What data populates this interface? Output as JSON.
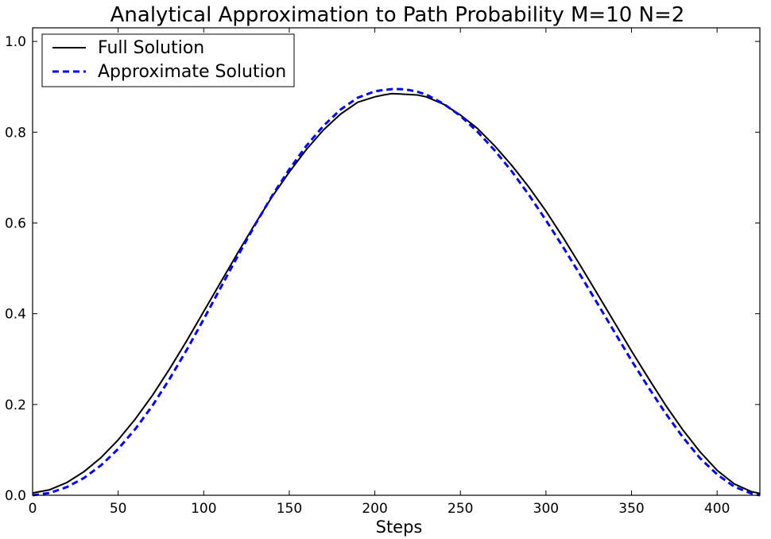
{
  "chart_data": {
    "type": "line",
    "title": "Analytical Approximation to Path Probability   M=10 N=2",
    "xlabel": "Steps",
    "ylabel": "",
    "xlim": [
      0,
      425
    ],
    "ylim": [
      0,
      1.03
    ],
    "xticks": [
      0,
      50,
      100,
      150,
      200,
      250,
      300,
      350,
      400
    ],
    "xtick_labels": [
      "0",
      "50",
      "100",
      "150",
      "200",
      "250",
      "300",
      "350",
      "400"
    ],
    "yticks": [
      0.0,
      0.2,
      0.4,
      0.6,
      0.8,
      1.0
    ],
    "ytick_labels": [
      "0.0",
      "0.2",
      "0.4",
      "0.6",
      "0.8",
      "1.0"
    ],
    "grid": false,
    "legend": {
      "position": "top-left"
    },
    "series": [
      {
        "name": "Full Solution",
        "color": "#000000",
        "style": "solid",
        "x": [
          0,
          10,
          20,
          30,
          40,
          50,
          60,
          70,
          80,
          90,
          100,
          110,
          120,
          130,
          140,
          150,
          160,
          170,
          180,
          190,
          200,
          205,
          210,
          215,
          220,
          225,
          230,
          240,
          250,
          260,
          270,
          280,
          290,
          300,
          310,
          320,
          330,
          340,
          350,
          360,
          370,
          380,
          390,
          400,
          410,
          420,
          425
        ],
        "y": [
          0.005,
          0.012,
          0.028,
          0.052,
          0.083,
          0.122,
          0.168,
          0.22,
          0.278,
          0.34,
          0.405,
          0.47,
          0.535,
          0.598,
          0.658,
          0.712,
          0.762,
          0.805,
          0.84,
          0.866,
          0.878,
          0.882,
          0.885,
          0.884,
          0.883,
          0.882,
          0.878,
          0.862,
          0.838,
          0.808,
          0.77,
          0.727,
          0.679,
          0.626,
          0.568,
          0.507,
          0.444,
          0.381,
          0.318,
          0.257,
          0.198,
          0.144,
          0.096,
          0.055,
          0.025,
          0.008,
          0.004
        ]
      },
      {
        "name": "Approximate Solution",
        "color": "#0000ff",
        "style": "dashed",
        "x": [
          0,
          10,
          20,
          30,
          40,
          50,
          60,
          70,
          80,
          90,
          100,
          110,
          120,
          130,
          140,
          150,
          160,
          170,
          180,
          190,
          200,
          205,
          210,
          215,
          220,
          225,
          230,
          240,
          250,
          260,
          270,
          280,
          290,
          300,
          310,
          320,
          330,
          340,
          350,
          360,
          370,
          380,
          390,
          400,
          410,
          420,
          425
        ],
        "y": [
          0.0,
          0.005,
          0.018,
          0.038,
          0.066,
          0.102,
          0.146,
          0.197,
          0.256,
          0.32,
          0.388,
          0.458,
          0.528,
          0.596,
          0.66,
          0.718,
          0.77,
          0.814,
          0.85,
          0.876,
          0.89,
          0.893,
          0.895,
          0.895,
          0.893,
          0.889,
          0.883,
          0.863,
          0.836,
          0.801,
          0.76,
          0.714,
          0.662,
          0.606,
          0.547,
          0.486,
          0.423,
          0.36,
          0.297,
          0.237,
          0.18,
          0.128,
          0.082,
          0.046,
          0.019,
          0.004,
          0.0
        ]
      }
    ]
  }
}
